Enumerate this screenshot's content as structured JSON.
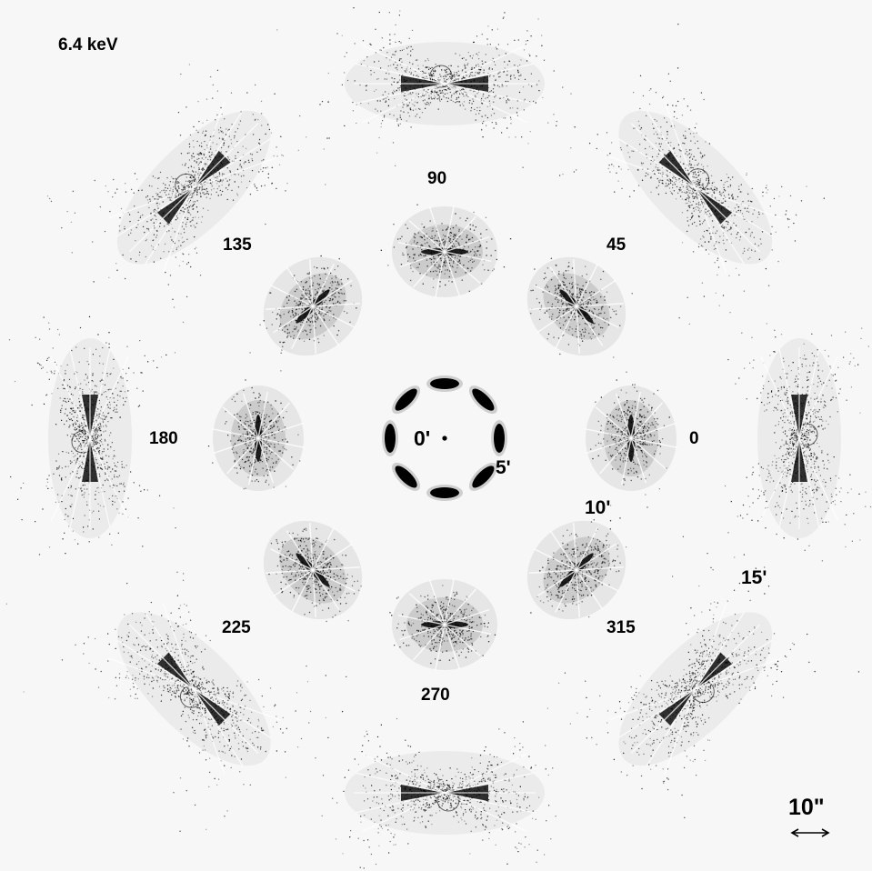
{
  "energy_label": "6.4 keV",
  "scale_bar_label": "10\"",
  "radius_labels": [
    {
      "id": "r0",
      "text": "0'",
      "offset_arcmin": 0
    },
    {
      "id": "r5",
      "text": "5'",
      "offset_arcmin": 5
    },
    {
      "id": "r10",
      "text": "10'",
      "offset_arcmin": 10
    },
    {
      "id": "r15",
      "text": "15'",
      "offset_arcmin": 15
    }
  ],
  "azimuth_labels": [
    {
      "text": "0",
      "angle_deg": 0
    },
    {
      "text": "45",
      "angle_deg": 45
    },
    {
      "text": "90",
      "angle_deg": 90
    },
    {
      "text": "135",
      "angle_deg": 135
    },
    {
      "text": "180",
      "angle_deg": 180
    },
    {
      "text": "225",
      "angle_deg": 225
    },
    {
      "text": "270",
      "angle_deg": 270
    },
    {
      "text": "315",
      "angle_deg": 315
    }
  ],
  "psf_rings": [
    {
      "offset_arcmin": 5,
      "angles_deg": [
        0,
        45,
        90,
        135,
        180,
        225,
        270,
        315
      ]
    },
    {
      "offset_arcmin": 10,
      "angles_deg": [
        0,
        45,
        90,
        135,
        180,
        225,
        270,
        315
      ]
    },
    {
      "offset_arcmin": 15,
      "angles_deg": [
        0,
        45,
        90,
        135,
        180,
        225,
        270,
        315
      ]
    }
  ],
  "colors": {
    "ink": "#000000",
    "halo": "#555555",
    "background": "#f7f7f7"
  }
}
